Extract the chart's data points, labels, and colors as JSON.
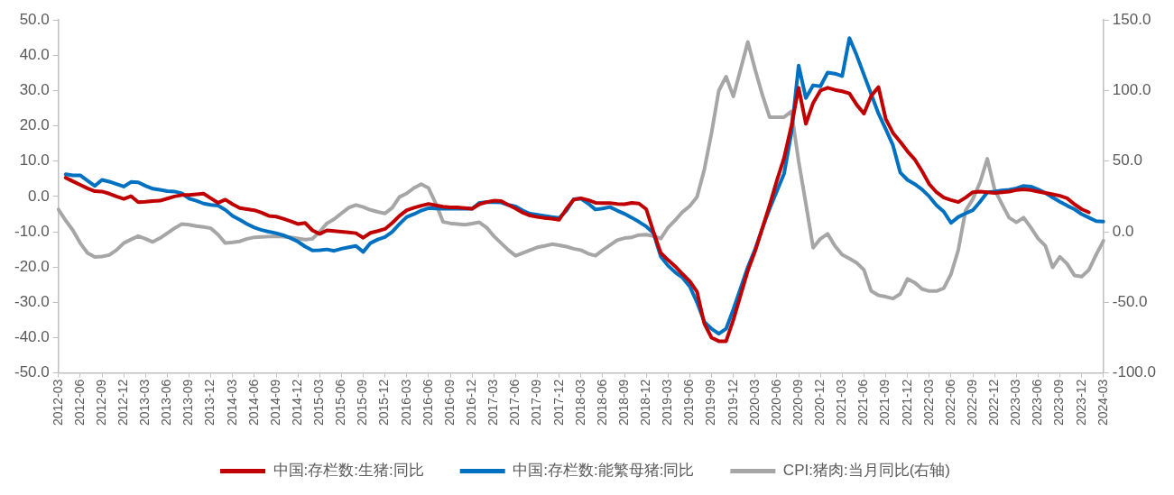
{
  "chart_data": {
    "type": "line",
    "categories": [
      "2012-03",
      null,
      null,
      "2012-06",
      null,
      null,
      "2012-09",
      null,
      null,
      "2012-12",
      null,
      null,
      "2013-03",
      null,
      null,
      "2013-06",
      null,
      null,
      "2013-09",
      null,
      null,
      "2013-12",
      null,
      null,
      "2014-03",
      null,
      null,
      "2014-06",
      null,
      null,
      "2014-09",
      null,
      null,
      "2014-12",
      null,
      null,
      "2015-03",
      null,
      null,
      "2015-06",
      null,
      null,
      "2015-09",
      null,
      null,
      "2015-12",
      null,
      null,
      "2016-03",
      null,
      null,
      "2016-06",
      null,
      null,
      "2016-09",
      null,
      null,
      "2016-12",
      null,
      null,
      "2017-03",
      null,
      null,
      "2017-06",
      null,
      null,
      "2017-09",
      null,
      null,
      "2017-12",
      null,
      null,
      "2018-03",
      null,
      null,
      "2018-06",
      null,
      null,
      "2018-09",
      null,
      null,
      "2018-12",
      null,
      null,
      "2019-03",
      null,
      null,
      "2019-06",
      null,
      null,
      "2019-09",
      null,
      null,
      "2019-12",
      null,
      null,
      "2020-03",
      null,
      null,
      "2020-06",
      null,
      null,
      "2020-09",
      null,
      null,
      "2020-12",
      null,
      null,
      "2021-03",
      null,
      null,
      "2021-06",
      null,
      null,
      "2021-09",
      null,
      null,
      "2021-12",
      null,
      null,
      "2022-03",
      null,
      null,
      "2022-06",
      null,
      null,
      "2022-09",
      null,
      null,
      "2022-12",
      null,
      null,
      "2023-03",
      null,
      null,
      "2023-06",
      null,
      null,
      "2023-09",
      null,
      null,
      "2023-12",
      null,
      null,
      "2024-03"
    ],
    "series": [
      {
        "name": "中国:存栏数:生猪:同比",
        "color": "#c00000",
        "values": [
          null,
          5.3,
          4.3,
          3.3,
          2.3,
          1.5,
          1.4,
          0.8,
          0.0,
          -0.7,
          0.1,
          -1.6,
          -1.5,
          -1.3,
          -1.2,
          -0.6,
          0.0,
          0.4,
          0.4,
          0.6,
          0.8,
          -0.5,
          -1.8,
          -0.9,
          -2.2,
          -3.3,
          -3.6,
          -3.9,
          -4.6,
          -5.5,
          -5.7,
          -6.3,
          -7.0,
          -7.8,
          -7.5,
          -9.6,
          -10.6,
          -9.6,
          -9.8,
          -10.0,
          -10.2,
          -10.4,
          -11.7,
          -10.3,
          -9.8,
          -9.2,
          -7.5,
          -5.5,
          -3.9,
          -3.2,
          -2.6,
          -2.1,
          -2.5,
          -2.9,
          -3.1,
          -3.1,
          -3.3,
          -3.5,
          -2.2,
          -1.6,
          -1.2,
          -1.3,
          -2.4,
          -3.4,
          -4.6,
          -5.4,
          -5.8,
          -6.1,
          -6.3,
          -6.6,
          -3.5,
          -0.9,
          -0.5,
          -1.0,
          -1.8,
          -1.9,
          -1.9,
          -2.1,
          -2.2,
          -1.8,
          -2.0,
          -3.6,
          -10.0,
          -16.0,
          -18.0,
          -19.8,
          -22.0,
          -24.0,
          -27.0,
          -36.0,
          -40.0,
          -41.0,
          -41.0,
          -35.0,
          -28.0,
          -21.0,
          -15.5,
          -9.0,
          -2.5,
          4.5,
          11.0,
          20.0,
          30.8,
          20.6,
          26.5,
          30.0,
          30.8,
          30.2,
          29.8,
          29.2,
          26.0,
          23.5,
          28.5,
          31.0,
          22.0,
          18.0,
          15.5,
          12.8,
          10.5,
          7.2,
          3.5,
          1.2,
          -0.3,
          -1.0,
          -1.6,
          -0.3,
          1.2,
          1.4,
          1.2,
          1.0,
          1.2,
          1.4,
          1.8,
          2.0,
          1.8,
          1.4,
          1.0,
          0.6,
          0.2,
          -0.5,
          -2.2,
          -3.6,
          -4.5,
          null,
          null
        ]
      },
      {
        "name": "中国:存栏数:能繁母猪:同比",
        "color": "#0070c0",
        "values": [
          null,
          6.3,
          6.0,
          6.0,
          4.5,
          3.0,
          4.7,
          4.2,
          3.5,
          2.8,
          4.1,
          4.0,
          3.0,
          2.2,
          1.9,
          1.5,
          1.4,
          0.9,
          -0.6,
          -1.2,
          -2.0,
          -2.4,
          -2.6,
          -3.8,
          -5.5,
          -6.6,
          -7.8,
          -8.8,
          -9.5,
          -10.0,
          -10.4,
          -11.0,
          -11.8,
          -12.8,
          -14.2,
          -15.3,
          -15.2,
          -15.0,
          -15.4,
          -14.8,
          -14.4,
          -14.0,
          -15.7,
          -13.2,
          -12.2,
          -11.5,
          -10.0,
          -7.8,
          -5.8,
          -5.0,
          -4.0,
          -3.3,
          -3.4,
          -3.5,
          -3.5,
          -3.5,
          -3.5,
          -3.5,
          -1.8,
          -1.6,
          -1.6,
          -1.7,
          -2.4,
          -2.8,
          -4.0,
          -4.9,
          -5.2,
          -5.5,
          -5.8,
          -6.1,
          -4.0,
          -0.8,
          -0.6,
          -2.0,
          -3.7,
          -3.4,
          -3.0,
          -4.0,
          -4.9,
          -6.0,
          -7.2,
          -8.5,
          -10.4,
          -17.0,
          -19.6,
          -21.5,
          -23.0,
          -25.5,
          -30.0,
          -35.5,
          -37.5,
          -38.9,
          -37.5,
          -32.0,
          -26.0,
          -20.0,
          -15.0,
          -9.0,
          -3.5,
          1.5,
          6.5,
          18.0,
          37.1,
          27.9,
          31.5,
          31.2,
          35.1,
          34.8,
          34.1,
          44.9,
          40.0,
          34.5,
          29.0,
          23.5,
          19.1,
          14.5,
          6.8,
          4.7,
          3.5,
          2.0,
          0.0,
          -2.5,
          -4.3,
          -7.5,
          -5.8,
          -4.8,
          -3.9,
          -1.5,
          1.2,
          1.4,
          1.7,
          1.9,
          2.3,
          3.0,
          2.8,
          2.0,
          1.0,
          -0.3,
          -1.5,
          -2.6,
          -3.6,
          -5.0,
          -6.0,
          -7.0,
          -7.1
        ]
      },
      {
        "name": "CPI:猪肉:当月同比(右轴)",
        "color": "#a6a6a6",
        "axis": "y2",
        "values": [
          15.7,
          8.0,
          1.0,
          -8.0,
          -15.0,
          -17.8,
          -17.5,
          -16.5,
          -13.0,
          -8.0,
          -5.5,
          -3.1,
          -5.0,
          -7.2,
          -4.5,
          -1.0,
          2.5,
          5.5,
          5.0,
          4.0,
          3.4,
          2.5,
          -2.0,
          -8.0,
          -7.5,
          -6.8,
          -5.0,
          -3.9,
          -3.6,
          -3.4,
          -3.1,
          -3.5,
          -4.0,
          -4.8,
          -5.6,
          -5.0,
          0.0,
          6.0,
          9.0,
          13.0,
          17.0,
          19.0,
          17.5,
          15.5,
          14.1,
          13.0,
          17.0,
          24.7,
          27.2,
          31.0,
          33.7,
          31.0,
          20.0,
          7.0,
          6.0,
          5.5,
          5.0,
          5.8,
          6.7,
          3.0,
          -3.1,
          -8.0,
          -13.0,
          -17.0,
          -15.0,
          -13.0,
          -11.0,
          -10.0,
          -8.8,
          -9.5,
          -10.5,
          -12.0,
          -13.0,
          -15.5,
          -17.0,
          -13.0,
          -9.5,
          -6.0,
          -4.5,
          -3.9,
          -2.3,
          -2.0,
          -3.0,
          -4.8,
          3.0,
          8.3,
          14.0,
          18.2,
          24.7,
          44.0,
          70.0,
          100.0,
          109.9,
          95.9,
          115.0,
          134.4,
          115.0,
          97.0,
          81.2,
          81.2,
          81.2,
          85.3,
          50.0,
          19.8,
          -11.3,
          -5.0,
          -1.5,
          -10.0,
          -16.2,
          -19.0,
          -22.0,
          -27.0,
          -42.0,
          -45.0,
          -46.0,
          -47.3,
          -44.0,
          -33.4,
          -36.0,
          -40.5,
          -42.0,
          -42.0,
          -40.0,
          -30.0,
          -12.9,
          15.0,
          23.1,
          35.0,
          51.7,
          30.0,
          19.8,
          10.0,
          6.7,
          10.0,
          3.0,
          -4.8,
          -10.0,
          -25.2,
          -17.8,
          -22.7,
          -30.9,
          -31.8,
          -27.0,
          -16.2,
          -6.4
        ]
      }
    ],
    "ylim": [
      -50,
      50
    ],
    "yticks": [
      {
        "value": -50,
        "label": "-50.0"
      },
      {
        "value": -40,
        "label": "-40.0"
      },
      {
        "value": -30,
        "label": "-30.0"
      },
      {
        "value": -20,
        "label": "-20.0"
      },
      {
        "value": -10,
        "label": "-10.0"
      },
      {
        "value": 0,
        "label": "0.0"
      },
      {
        "value": 10,
        "label": "10.0"
      },
      {
        "value": 20,
        "label": "20.0"
      },
      {
        "value": 30,
        "label": "30.0"
      },
      {
        "value": 40,
        "label": "40.0"
      },
      {
        "value": 50,
        "label": "50.0"
      }
    ],
    "y2lim": [
      -100,
      150
    ],
    "y2ticks": [
      {
        "value": -100,
        "label": "-100.0"
      },
      {
        "value": -50,
        "label": "-50.0"
      },
      {
        "value": 0,
        "label": "0.0"
      },
      {
        "value": 50,
        "label": "50.0"
      },
      {
        "value": 100,
        "label": "100.0"
      },
      {
        "value": 150,
        "label": "150.0"
      }
    ],
    "legend": "bottom",
    "marker": "none",
    "line_style": "solid"
  }
}
